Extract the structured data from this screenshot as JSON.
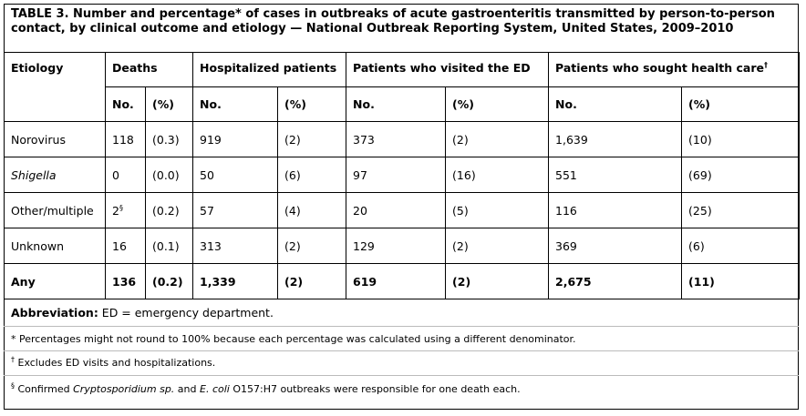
{
  "title": "TABLE 3. Number and percentage* of cases in outbreaks of acute gastroenteritis transmitted by person-to-person contact, by clinical outcome and etiology — National Outbreak Reporting System, United States, 2009–2010",
  "headers": {
    "etiology": "Etiology",
    "groups": [
      "Deaths",
      "Hospitalized patients",
      "Patients who visited the ED",
      "Patients who sought health care"
    ],
    "group4_mark": "†",
    "sub": {
      "no": "No.",
      "pct": "(%)"
    }
  },
  "rows": [
    {
      "etiology": "Norovirus",
      "italic": false,
      "mark": "",
      "cells": [
        "118",
        "(0.3)",
        "919",
        "(2)",
        "373",
        "(2)",
        "1,639",
        "(10)"
      ]
    },
    {
      "etiology": "Shigella",
      "italic": true,
      "mark": "",
      "cells": [
        "0",
        "(0.0)",
        "50",
        "(6)",
        "97",
        "(16)",
        "551",
        "(69)"
      ]
    },
    {
      "etiology": "Other/multiple",
      "italic": false,
      "mark": "§",
      "cells": [
        "2",
        "(0.2)",
        "57",
        "(4)",
        "20",
        "(5)",
        "116",
        "(25)"
      ]
    },
    {
      "etiology": "Unknown",
      "italic": false,
      "mark": "",
      "cells": [
        "16",
        "(0.1)",
        "313",
        "(2)",
        "129",
        "(2)",
        "369",
        "(6)"
      ]
    }
  ],
  "total": {
    "etiology": "Any",
    "cells": [
      "136",
      "(0.2)",
      "1,339",
      "(2)",
      "619",
      "(2)",
      "2,675",
      "(11)"
    ]
  },
  "footnotes": {
    "abbrev_label": "Abbreviation:",
    "abbrev_text": " ED = emergency department.",
    "star": "* Percentages might not round to 100% because each percentage was calculated using a different denominator.",
    "dagger_mark": "†",
    "dagger_text": " Excludes ED visits and hospitalizations.",
    "section_mark": "§",
    "section_parts": [
      " Confirmed ",
      "Cryptosporidium sp.",
      " and ",
      "E. coli",
      " O157:H7 outbreaks were responsible for one death each."
    ]
  }
}
